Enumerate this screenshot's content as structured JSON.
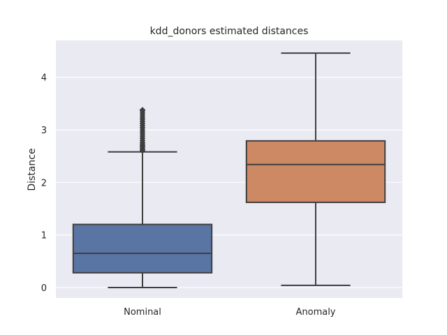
{
  "chart_data": {
    "type": "box",
    "title": "kdd_donors estimated distances",
    "xlabel": "",
    "ylabel": "Distance",
    "ylim": [
      -0.2,
      4.7
    ],
    "yticks": [
      0,
      1,
      2,
      3,
      4
    ],
    "grid": true,
    "categories": [
      "Nominal",
      "Anomaly"
    ],
    "boxes": [
      {
        "category": "Nominal",
        "color": "#5975a4",
        "whisker_low": 0.0,
        "q1": 0.28,
        "median": 0.65,
        "q3": 1.2,
        "whisker_high": 2.58,
        "outliers": [
          2.6,
          2.62,
          2.65,
          2.68,
          2.7,
          2.73,
          2.76,
          2.8,
          2.84,
          2.88,
          2.92,
          2.96,
          3.0,
          3.04,
          3.08,
          3.12,
          3.16,
          3.2,
          3.24,
          3.28,
          3.32,
          3.36,
          3.38
        ]
      },
      {
        "category": "Anomaly",
        "color": "#cc8963",
        "whisker_low": 0.04,
        "q1": 1.62,
        "median": 2.34,
        "q3": 2.79,
        "whisker_high": 4.46,
        "outliers": []
      }
    ]
  }
}
